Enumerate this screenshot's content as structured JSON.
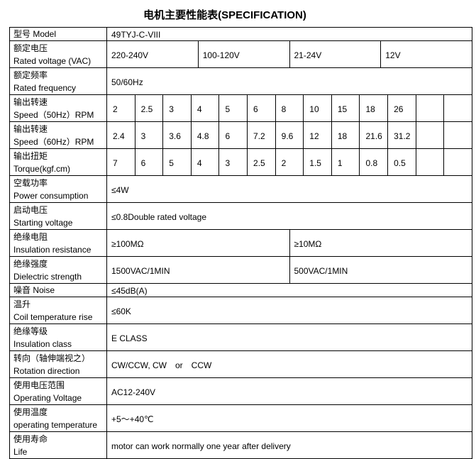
{
  "title": "电机主要性能表(SPECIFICATION)",
  "rows": [
    {
      "label": [
        "型号 Model"
      ],
      "cells": [
        "49TYJ-C-VIII"
      ]
    },
    {
      "label": [
        "额定电压",
        "Rated voltage (VAC)"
      ],
      "cells": [
        "220-240V",
        "100-120V",
        "21-24V",
        "12V"
      ]
    },
    {
      "label": [
        "额定频率",
        "Rated frequency"
      ],
      "cells": [
        "50/60Hz"
      ]
    },
    {
      "label": [
        "输出转速",
        "Speed（50Hz）RPM"
      ],
      "cells": [
        "2",
        "2.5",
        "3",
        "4",
        "5",
        "6",
        "8",
        "10",
        "15",
        "18",
        "26"
      ]
    },
    {
      "label": [
        "输出转速",
        "Speed（60Hz）RPM"
      ],
      "cells": [
        "2.4",
        "3",
        "3.6",
        "4.8",
        "6",
        "7.2",
        "9.6",
        "12",
        "18",
        "21.6",
        "31.2"
      ]
    },
    {
      "label": [
        "输出扭矩",
        "Torque(kgf.cm)"
      ],
      "cells": [
        "7",
        "6",
        "5",
        "4",
        "3",
        "2.5",
        "2",
        "1.5",
        "1",
        "0.8",
        "0.5"
      ]
    },
    {
      "label": [
        "空载功率",
        "Power consumption"
      ],
      "cells": [
        "≤4W"
      ]
    },
    {
      "label": [
        "启动电压",
        "Starting voltage"
      ],
      "cells": [
        "≤0.8Double rated voltage"
      ]
    },
    {
      "label": [
        "绝缘电阻",
        "Insulation resistance"
      ],
      "cells": [
        "≥100MΩ",
        "≥10MΩ"
      ]
    },
    {
      "label": [
        "绝缘强度",
        "Dielectric strength"
      ],
      "cells": [
        "1500VAC/1MIN",
        "500VAC/1MIN"
      ]
    },
    {
      "label": [
        "噪音 Noise"
      ],
      "cells": [
        "≤45dB(A)"
      ]
    },
    {
      "label": [
        "温升",
        "Coil temperature rise"
      ],
      "cells": [
        "≤60K"
      ]
    },
    {
      "label": [
        "绝缘等级",
        "Insulation class"
      ],
      "cells": [
        "E CLASS"
      ]
    },
    {
      "label": [
        "转向（轴伸端视之）",
        "Rotation direction"
      ],
      "cells": [
        "CW/CCW, CW　or　CCW"
      ]
    },
    {
      "label": [
        "使用电压范围",
        "Operating Voltage"
      ],
      "cells": [
        "AC12-240V"
      ]
    },
    {
      "label": [
        "使用温度",
        "operating temperature"
      ],
      "cells": [
        "+5～+40℃"
      ]
    },
    {
      "label": [
        "使用寿命",
        "Life"
      ],
      "cells": [
        "motor can work normally one year after delivery"
      ]
    }
  ]
}
